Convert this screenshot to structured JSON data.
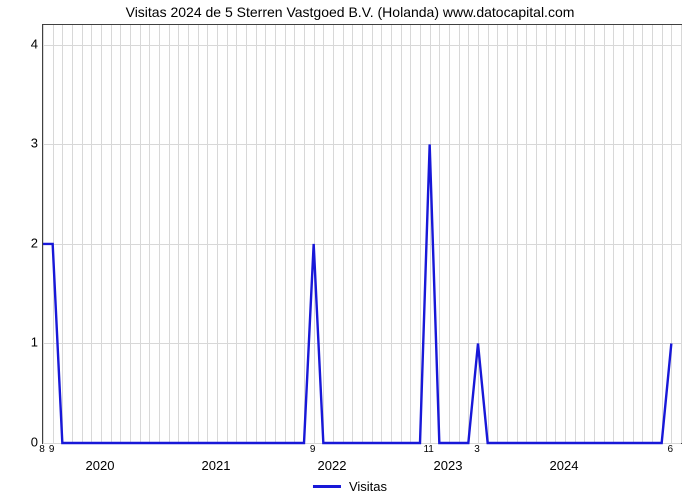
{
  "chart": {
    "type": "line",
    "title": "Visitas 2024 de 5 Sterren Vastgoed B.V. (Holanda) www.datocapital.com",
    "title_fontsize": 14,
    "background_color": "#ffffff",
    "grid_color": "#d8d8d8",
    "axis_color": "#404040",
    "line_color": "#1818d8",
    "line_width": 2.4,
    "x_range": [
      0,
      66
    ],
    "y_range": [
      0,
      4.2
    ],
    "y_ticks": [
      0,
      1,
      2,
      3,
      4
    ],
    "y_tick_labels": [
      "0",
      "1",
      "2",
      "3",
      "4"
    ],
    "x_major_ticks": [
      6,
      18,
      30,
      42,
      54,
      66
    ],
    "x_major_labels": [
      "2020",
      "2021",
      "2022",
      "2023",
      "2024",
      ""
    ],
    "x_minor_grid": [
      0,
      1,
      2,
      3,
      4,
      5,
      6,
      7,
      8,
      9,
      10,
      11,
      12,
      13,
      14,
      15,
      16,
      17,
      18,
      19,
      20,
      21,
      22,
      23,
      24,
      25,
      26,
      27,
      28,
      29,
      30,
      31,
      32,
      33,
      34,
      35,
      36,
      37,
      38,
      39,
      40,
      41,
      42,
      43,
      44,
      45,
      46,
      47,
      48,
      49,
      50,
      51,
      52,
      53,
      54,
      55,
      56,
      57,
      58,
      59,
      60,
      61,
      62,
      63,
      64,
      65,
      66
    ],
    "data_labels": [
      {
        "x": 0,
        "label": "8"
      },
      {
        "x": 1,
        "label": "9"
      },
      {
        "x": 28,
        "label": "9"
      },
      {
        "x": 40,
        "label": "11"
      },
      {
        "x": 45,
        "label": "3"
      },
      {
        "x": 65,
        "label": "6"
      }
    ],
    "points": [
      [
        0,
        2
      ],
      [
        1,
        2
      ],
      [
        2,
        0
      ],
      [
        3,
        0
      ],
      [
        4,
        0
      ],
      [
        5,
        0
      ],
      [
        6,
        0
      ],
      [
        7,
        0
      ],
      [
        8,
        0
      ],
      [
        9,
        0
      ],
      [
        10,
        0
      ],
      [
        11,
        0
      ],
      [
        12,
        0
      ],
      [
        13,
        0
      ],
      [
        14,
        0
      ],
      [
        15,
        0
      ],
      [
        16,
        0
      ],
      [
        17,
        0
      ],
      [
        18,
        0
      ],
      [
        19,
        0
      ],
      [
        20,
        0
      ],
      [
        21,
        0
      ],
      [
        22,
        0
      ],
      [
        23,
        0
      ],
      [
        24,
        0
      ],
      [
        25,
        0
      ],
      [
        26,
        0
      ],
      [
        27,
        0
      ],
      [
        28,
        2
      ],
      [
        29,
        0
      ],
      [
        30,
        0
      ],
      [
        31,
        0
      ],
      [
        32,
        0
      ],
      [
        33,
        0
      ],
      [
        34,
        0
      ],
      [
        35,
        0
      ],
      [
        36,
        0
      ],
      [
        37,
        0
      ],
      [
        38,
        0
      ],
      [
        39,
        0
      ],
      [
        40,
        3
      ],
      [
        41,
        0
      ],
      [
        42,
        0
      ],
      [
        43,
        0
      ],
      [
        44,
        0
      ],
      [
        45,
        1
      ],
      [
        46,
        0
      ],
      [
        47,
        0
      ],
      [
        48,
        0
      ],
      [
        49,
        0
      ],
      [
        50,
        0
      ],
      [
        51,
        0
      ],
      [
        52,
        0
      ],
      [
        53,
        0
      ],
      [
        54,
        0
      ],
      [
        55,
        0
      ],
      [
        56,
        0
      ],
      [
        57,
        0
      ],
      [
        58,
        0
      ],
      [
        59,
        0
      ],
      [
        60,
        0
      ],
      [
        61,
        0
      ],
      [
        62,
        0
      ],
      [
        63,
        0
      ],
      [
        64,
        0
      ],
      [
        65,
        1
      ]
    ],
    "legend": {
      "label": "Visitas",
      "position": "bottom-center",
      "swatch_color": "#1818d8"
    }
  }
}
